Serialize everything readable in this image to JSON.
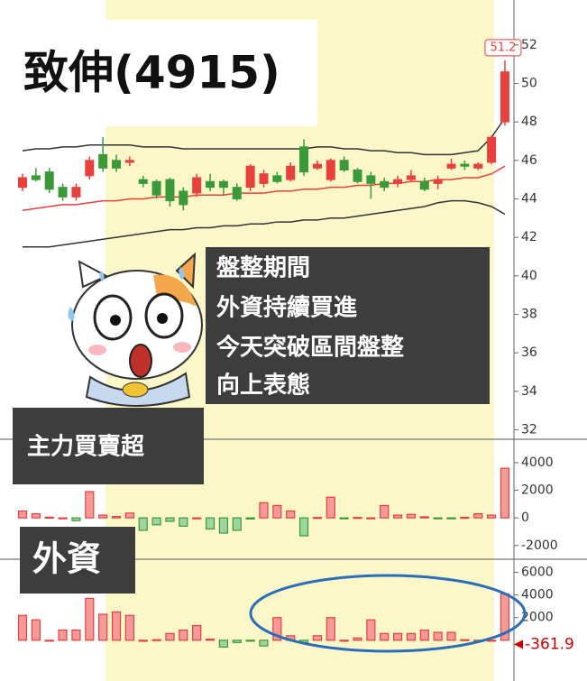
{
  "chart_data": [
    {
      "type": "candlestick",
      "title": "致伸(4915)",
      "annotations": [
        "盤整期間",
        "外資持續買進",
        "今天突破區間盤整",
        "向上表態"
      ],
      "price_tag": 51.2,
      "up_color": "#e8413c",
      "down_color": "#3a9a3a",
      "ylim": [
        31.6,
        54.1
      ],
      "yticks": [
        32,
        34,
        36,
        38,
        40,
        42,
        44,
        46,
        48,
        50,
        52
      ],
      "open": [
        44.6,
        45.2,
        45.4,
        44.6,
        44.1,
        45.2,
        46.3,
        46.0,
        45.9,
        45.0,
        44.9,
        45.0,
        44.4,
        44.3,
        44.9,
        44.9,
        44.6,
        44.6,
        44.8,
        45.2,
        45.0,
        46.7,
        45.6,
        45.0,
        46.0,
        45.5,
        45.2,
        44.9,
        44.8,
        45.0,
        44.9,
        44.8,
        45.6,
        45.8,
        45.6,
        45.9,
        48.0
      ],
      "close": [
        45.1,
        45.0,
        44.5,
        44.1,
        44.6,
        46.0,
        45.6,
        45.6,
        46.0,
        44.8,
        44.2,
        43.9,
        43.7,
        45.1,
        44.6,
        44.6,
        44.0,
        45.7,
        45.3,
        44.9,
        45.7,
        45.4,
        45.8,
        46.0,
        45.5,
        44.9,
        44.8,
        44.6,
        45.0,
        45.2,
        44.5,
        45.0,
        45.8,
        45.7,
        45.8,
        47.2,
        50.6
      ],
      "high": [
        45.3,
        45.6,
        45.6,
        44.8,
        44.8,
        46.2,
        47.2,
        46.3,
        46.2,
        45.2,
        45.0,
        45.1,
        44.6,
        45.3,
        45.3,
        45.0,
        44.8,
        45.8,
        45.5,
        45.4,
        45.9,
        47.1,
        46.0,
        46.1,
        46.2,
        45.6,
        45.4,
        45.1,
        45.2,
        45.5,
        45.1,
        45.2,
        46.1,
        46.0,
        45.9,
        47.3,
        51.2
      ],
      "low": [
        44.4,
        44.9,
        44.3,
        43.9,
        43.9,
        45.0,
        45.4,
        45.4,
        45.7,
        44.6,
        44.0,
        43.6,
        43.4,
        44.1,
        44.4,
        44.2,
        43.9,
        44.4,
        44.6,
        44.8,
        44.9,
        45.2,
        45.5,
        44.9,
        45.4,
        44.8,
        44.0,
        44.4,
        44.6,
        44.9,
        44.4,
        44.5,
        45.5,
        45.5,
        45.5,
        45.8,
        47.8
      ],
      "bands": [
        {
          "color": "#333333",
          "values": [
            46.5,
            46.6,
            46.6,
            46.7,
            46.7,
            46.8,
            46.8,
            46.8,
            46.8,
            46.7,
            46.7,
            46.7,
            46.6,
            46.6,
            46.6,
            46.6,
            46.6,
            46.6,
            46.6,
            46.6,
            46.6,
            46.6,
            46.7,
            46.7,
            46.6,
            46.6,
            46.5,
            46.5,
            46.4,
            46.4,
            46.3,
            46.3,
            46.3,
            46.4,
            46.5,
            47.2,
            48.2
          ]
        },
        {
          "color": "#e8413c",
          "values": [
            43.4,
            43.5,
            43.6,
            43.7,
            43.7,
            43.8,
            43.9,
            43.9,
            44.0,
            44.0,
            44.1,
            44.1,
            44.1,
            44.2,
            44.2,
            44.2,
            44.3,
            44.3,
            44.3,
            44.4,
            44.4,
            44.5,
            44.5,
            44.6,
            44.6,
            44.7,
            44.7,
            44.8,
            44.8,
            44.9,
            44.9,
            45.0,
            45.0,
            45.1,
            45.1,
            45.3,
            45.7
          ]
        },
        {
          "color": "#333333",
          "values": [
            41.5,
            41.5,
            41.5,
            41.6,
            41.7,
            41.8,
            41.9,
            42.0,
            42.1,
            42.2,
            42.3,
            42.4,
            42.4,
            42.5,
            42.5,
            42.6,
            42.6,
            42.7,
            42.7,
            42.8,
            42.8,
            42.9,
            42.9,
            43.0,
            43.0,
            43.1,
            43.2,
            43.3,
            43.4,
            43.5,
            43.6,
            43.8,
            43.9,
            43.9,
            43.8,
            43.6,
            43.2
          ]
        }
      ]
    },
    {
      "type": "bar",
      "title": "主力買賣超",
      "up_color": "#e8413c",
      "down_color": "#3a9a3a",
      "ylim": [
        -2800,
        5500
      ],
      "yticks": [
        -2000,
        0,
        2000,
        4000
      ],
      "values": [
        500,
        300,
        50,
        0,
        -200,
        1900,
        200,
        100,
        350,
        -900,
        -500,
        -250,
        -600,
        0,
        -800,
        -1100,
        -900,
        -80,
        1100,
        900,
        500,
        -1300,
        30,
        1500,
        -50,
        30,
        0,
        900,
        200,
        250,
        80,
        -40,
        -30,
        40,
        300,
        200,
        3600
      ]
    },
    {
      "type": "bar",
      "title": "外資",
      "up_color": "#e8413c",
      "down_color": "#3a9a3a",
      "value_tag": -361.9,
      "ylim": [
        -3600,
        7000
      ],
      "yticks": [
        2000,
        4000,
        6000
      ],
      "values": [
        2200,
        1800,
        0,
        900,
        900,
        3700,
        2300,
        2500,
        2200,
        0,
        50,
        600,
        900,
        1300,
        100,
        -600,
        -200,
        -50,
        -500,
        2000,
        400,
        -200,
        400,
        2000,
        0,
        200,
        1800,
        600,
        600,
        600,
        900,
        700,
        700,
        50,
        0,
        0,
        4100
      ]
    }
  ]
}
